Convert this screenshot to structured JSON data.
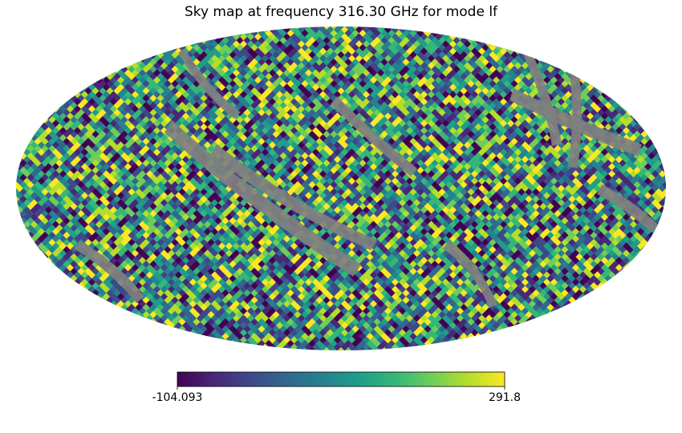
{
  "chart_data": {
    "type": "heatmap",
    "title": "Sky map at frequency 316.30 GHz for mode lf",
    "projection": "mollweide",
    "colormap": "viridis",
    "colormap_stops": [
      "#440154",
      "#482878",
      "#3e4989",
      "#31688e",
      "#26828e",
      "#1f9e89",
      "#35b779",
      "#6ece58",
      "#b5de2b",
      "#fde725"
    ],
    "masked_color": "#808080",
    "vmin": -104.093,
    "vmax": 291.8,
    "colorbar": {
      "orientation": "horizontal",
      "tick_labels": [
        "-104.093",
        "291.8"
      ]
    }
  }
}
